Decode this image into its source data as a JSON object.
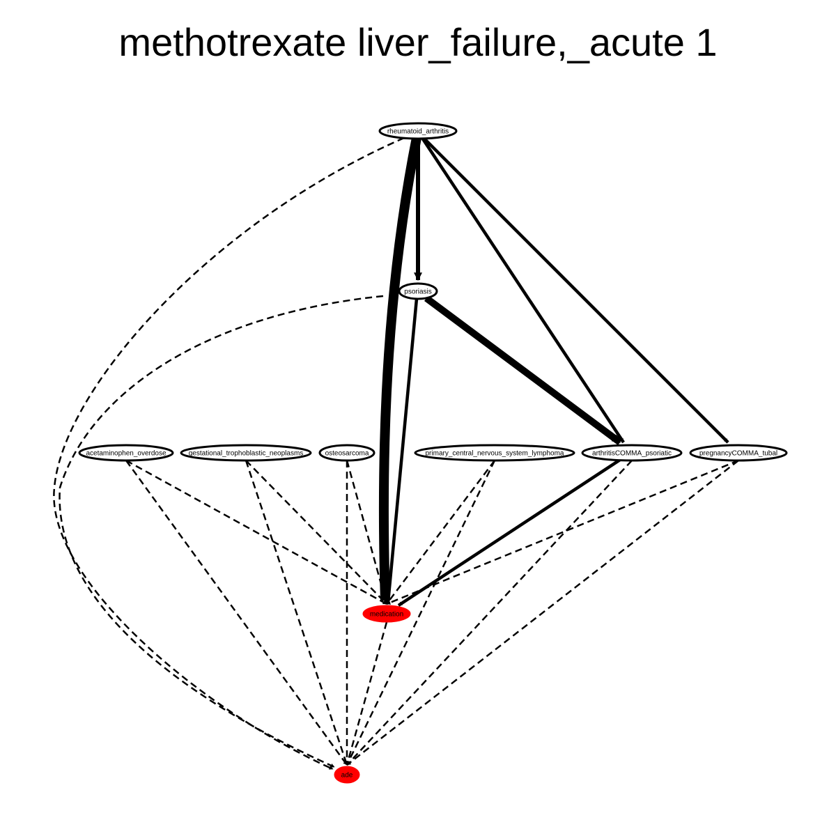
{
  "title": "methotrexate liver_failure,_acute 1",
  "colors": {
    "highlight_node": "#ff0000",
    "node_fill": "#ffffff",
    "edge": "#000000"
  },
  "nodes": [
    {
      "id": "rheumatoid_arthritis",
      "label": "rheumatoid_arthritis",
      "fill": "white"
    },
    {
      "id": "psoriasis",
      "label": "psoriasis",
      "fill": "white"
    },
    {
      "id": "acetaminophen_overdose",
      "label": "acetaminophen_overdose",
      "fill": "white"
    },
    {
      "id": "gestational_trophoblastic_neoplasms",
      "label": "gestational_trophoblastic_neoplasms",
      "fill": "white"
    },
    {
      "id": "osteosarcoma",
      "label": "osteosarcoma",
      "fill": "white"
    },
    {
      "id": "primary_central_nervous_system_lymphoma",
      "label": "primary_central_nervous_system_lymphoma",
      "fill": "white"
    },
    {
      "id": "arthritisCOMMA_psoriatic",
      "label": "arthritisCOMMA_psoriatic",
      "fill": "white"
    },
    {
      "id": "pregnancyCOMMA_tubal",
      "label": "pregnancyCOMMA_tubal",
      "fill": "white"
    },
    {
      "id": "medication",
      "label": "medication",
      "fill": "red"
    },
    {
      "id": "ade",
      "label": "ade",
      "fill": "red"
    }
  ],
  "edges": [
    {
      "from": "rheumatoid_arthritis",
      "to": "medication",
      "style": "solid",
      "weight": 8
    },
    {
      "from": "rheumatoid_arthritis",
      "to": "psoriasis",
      "style": "solid",
      "weight": 3
    },
    {
      "from": "rheumatoid_arthritis",
      "to": "arthritisCOMMA_psoriatic",
      "style": "solid",
      "weight": 2
    },
    {
      "from": "rheumatoid_arthritis",
      "to": "pregnancyCOMMA_tubal",
      "style": "solid",
      "weight": 2
    },
    {
      "from": "rheumatoid_arthritis",
      "to": "ade",
      "style": "dashed",
      "weight": 1
    },
    {
      "from": "psoriasis",
      "to": "arthritisCOMMA_psoriatic",
      "style": "solid",
      "weight": 6
    },
    {
      "from": "psoriasis",
      "to": "medication",
      "style": "solid",
      "weight": 2
    },
    {
      "from": "psoriasis",
      "to": "ade",
      "style": "dashed",
      "weight": 1
    },
    {
      "from": "acetaminophen_overdose",
      "to": "medication",
      "style": "dashed",
      "weight": 1
    },
    {
      "from": "acetaminophen_overdose",
      "to": "ade",
      "style": "dashed",
      "weight": 1
    },
    {
      "from": "gestational_trophoblastic_neoplasms",
      "to": "medication",
      "style": "dashed",
      "weight": 1
    },
    {
      "from": "gestational_trophoblastic_neoplasms",
      "to": "ade",
      "style": "dashed",
      "weight": 1
    },
    {
      "from": "osteosarcoma",
      "to": "medication",
      "style": "dashed",
      "weight": 1
    },
    {
      "from": "osteosarcoma",
      "to": "ade",
      "style": "dashed",
      "weight": 1
    },
    {
      "from": "primary_central_nervous_system_lymphoma",
      "to": "medication",
      "style": "dashed",
      "weight": 1
    },
    {
      "from": "primary_central_nervous_system_lymphoma",
      "to": "ade",
      "style": "dashed",
      "weight": 1
    },
    {
      "from": "arthritisCOMMA_psoriatic",
      "to": "medication",
      "style": "solid",
      "weight": 2
    },
    {
      "from": "arthritisCOMMA_psoriatic",
      "to": "ade",
      "style": "dashed",
      "weight": 1
    },
    {
      "from": "pregnancyCOMMA_tubal",
      "to": "medication",
      "style": "dashed",
      "weight": 1
    },
    {
      "from": "pregnancyCOMMA_tubal",
      "to": "ade",
      "style": "dashed",
      "weight": 1
    },
    {
      "from": "medication",
      "to": "ade",
      "style": "dashed",
      "weight": 1
    }
  ]
}
